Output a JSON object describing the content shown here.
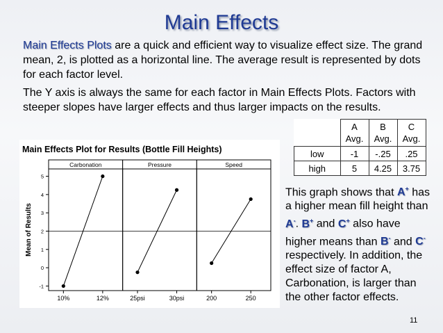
{
  "slide": {
    "title": "Main Effects",
    "para1_em": "Main Effects Plots",
    "para1_rest": " are a quick and efficient way to visualize effect size. The grand mean, 2, is plotted as a horizontal line. The average result is represented by dots for each factor level.",
    "para2": "The Y axis is always the same for each factor in Main Effects Plots. Factors with steeper slopes have larger effects and thus larger impacts on the results.",
    "page_number": "11"
  },
  "avg_table": {
    "headers": [
      "",
      "A\nAvg.",
      "B\nAvg.",
      "C\nAvg."
    ],
    "rows": [
      {
        "label": "low",
        "values": [
          "-1",
          "-.25",
          ".25"
        ]
      },
      {
        "label": "high",
        "values": [
          "5",
          "4.25",
          "3.75"
        ]
      }
    ]
  },
  "note": {
    "t1": "This graph shows that ",
    "a_plus": "A",
    "plus": "+",
    "minus": "-",
    "t2": " has a higher mean fill height than ",
    "a_minus": "A",
    "t3": ". ",
    "b_plus": "B",
    "t4": " and ",
    "c_plus": "C",
    "t5": " also have higher means than ",
    "b_minus": "B",
    "t6": " and ",
    "c_minus": "C",
    "t7": " respectively. In addition, the effect size of factor A, Carbonation, is larger than the other factor effects."
  },
  "chart_data": {
    "type": "line",
    "title": "Main Effects Plot for Results (Bottle Fill Heights)",
    "ylabel": "Mean of Results",
    "ylim": [
      -1.25,
      5.4
    ],
    "yticks": [
      -1,
      0,
      1,
      2,
      3,
      4,
      5
    ],
    "grand_mean": 2,
    "panels": [
      {
        "name": "Carbonation",
        "levels": [
          "10%",
          "12%"
        ],
        "values": [
          -1,
          5
        ]
      },
      {
        "name": "Pressure",
        "levels": [
          "25psi",
          "30psi"
        ],
        "values": [
          -0.25,
          4.25
        ]
      },
      {
        "name": "Speed",
        "levels": [
          "200",
          "250"
        ],
        "values": [
          0.25,
          3.75
        ]
      }
    ]
  }
}
